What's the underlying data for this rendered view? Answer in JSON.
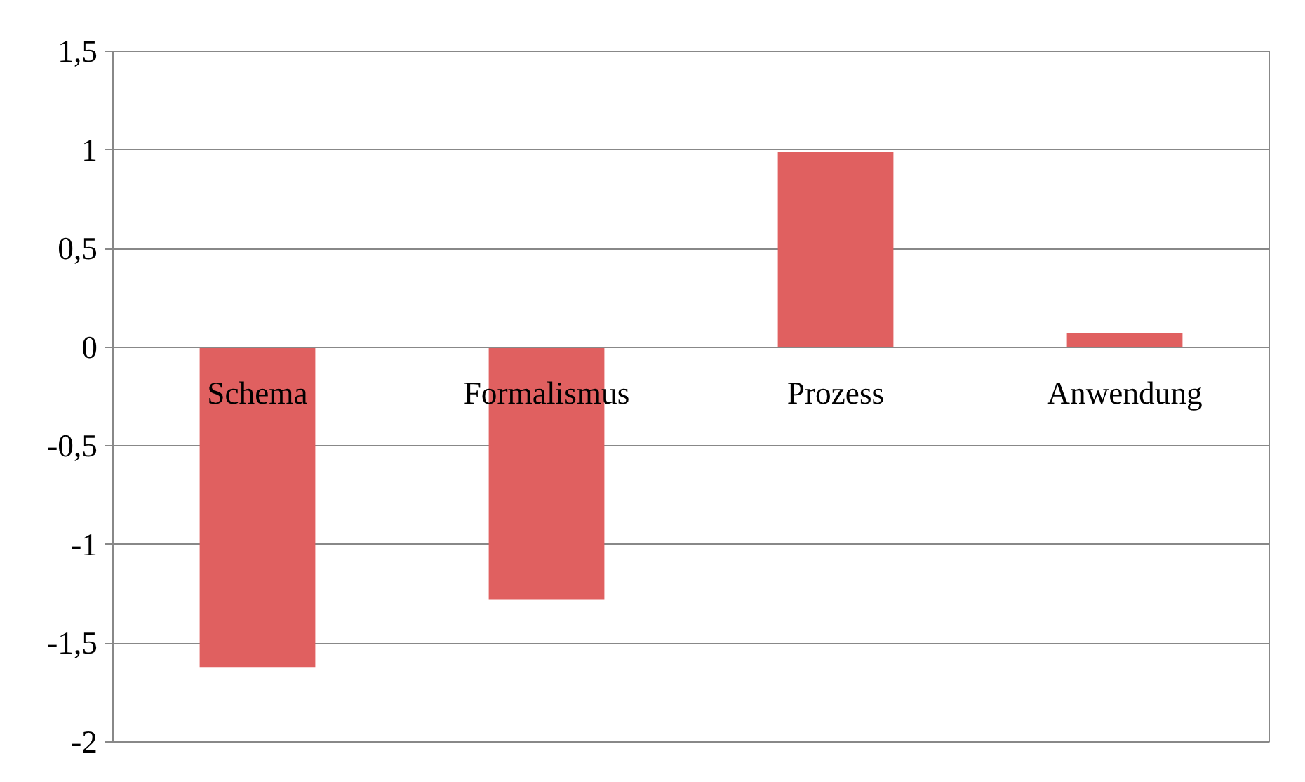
{
  "chart_data": {
    "type": "bar",
    "categories": [
      "Schema",
      "Formalismus",
      "Prozess",
      "Anwendung"
    ],
    "values": [
      -1.62,
      -1.28,
      0.99,
      0.07
    ],
    "color": "#e06060",
    "ylim": [
      -2,
      1.5
    ],
    "yticks": [
      {
        "value": -2,
        "label": "-2"
      },
      {
        "value": -1.5,
        "label": "-1,5"
      },
      {
        "value": -1,
        "label": "-1"
      },
      {
        "value": -0.5,
        "label": "-0,5"
      },
      0,
      {
        "value": 0.5,
        "label": "0,5"
      },
      1,
      {
        "value": 1.5,
        "label": "1,5"
      }
    ],
    "grid": "y"
  }
}
